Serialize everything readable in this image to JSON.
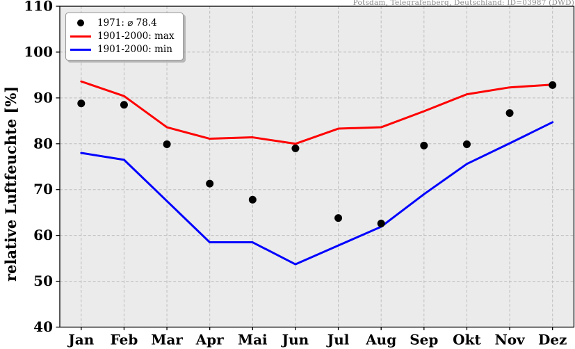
{
  "header": {
    "title": "Potsdam, Telegrafenberg, Deutschland: ID=03987 (DWD)"
  },
  "axes": {
    "ylabel": "relative Luftfeuchte [%]",
    "yticks": [
      40,
      50,
      60,
      70,
      80,
      90,
      100,
      110
    ],
    "xticks": [
      "Jan",
      "Feb",
      "Mar",
      "Apr",
      "Mai",
      "Jun",
      "Jul",
      "Aug",
      "Sep",
      "Okt",
      "Nov",
      "Dez"
    ]
  },
  "legend": {
    "items": [
      {
        "label": "1971: ⌀ 78.4",
        "marker": "dot",
        "color": "#000000"
      },
      {
        "label": "1901-2000: max",
        "marker": "line",
        "color": "#ff0000"
      },
      {
        "label": "1901-2000: min",
        "marker": "line",
        "color": "#0000ff"
      }
    ]
  },
  "colors": {
    "plot_background": "#ebebeb",
    "grid": "#bdbdbd",
    "frame": "#000000",
    "max_line": "#ff0000",
    "min_line": "#0000ff",
    "scatter": "#000000",
    "title_text": "#8c8c8c"
  },
  "chart_data": {
    "type": "line",
    "title": "Potsdam, Telegrafenberg, Deutschland: ID=03987 (DWD)",
    "xlabel": "",
    "ylabel": "relative Luftfeuchte [%]",
    "categories": [
      "Jan",
      "Feb",
      "Mar",
      "Apr",
      "Mai",
      "Jun",
      "Jul",
      "Aug",
      "Sep",
      "Okt",
      "Nov",
      "Dez"
    ],
    "ylim": [
      40,
      110
    ],
    "grid": true,
    "legend_position": "upper left",
    "series": [
      {
        "name": "1971",
        "display": "scatter",
        "color": "#000000",
        "mean": 78.4,
        "values": [
          88.8,
          88.5,
          79.9,
          71.3,
          67.8,
          79.0,
          63.8,
          62.6,
          79.6,
          79.9,
          86.7,
          92.8
        ]
      },
      {
        "name": "1901-2000: max",
        "display": "line",
        "color": "#ff0000",
        "values": [
          93.6,
          90.4,
          83.6,
          81.1,
          81.4,
          80.0,
          83.3,
          83.6,
          87.1,
          90.8,
          92.3,
          92.9
        ]
      },
      {
        "name": "1901-2000: min",
        "display": "line",
        "color": "#0000ff",
        "values": [
          78.0,
          76.5,
          67.5,
          58.5,
          58.5,
          53.7,
          57.8,
          61.9,
          69.0,
          75.6,
          80.1,
          84.7
        ]
      }
    ]
  }
}
